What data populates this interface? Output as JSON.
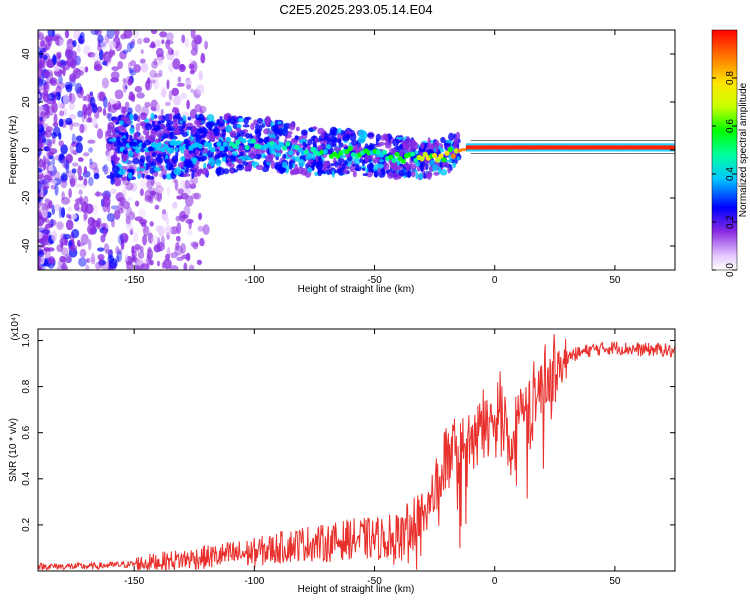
{
  "title": "C2E5.2025.293.05.14.E04",
  "chart_data": [
    {
      "type": "heatmap",
      "name": "spectrogram",
      "xlabel": "Height of straight line (km)",
      "ylabel": "Frequency (Hz)",
      "xlim": [
        -190,
        75
      ],
      "ylim": [
        -50,
        50
      ],
      "xticks": [
        -150,
        -100,
        -50,
        0,
        50
      ],
      "yticks": [
        -40,
        -20,
        0,
        20,
        40
      ],
      "xtick_labels": [
        "-150",
        "-100",
        "-50",
        "0",
        "50"
      ],
      "ytick_labels": [
        "-40",
        "-20",
        "0",
        "20",
        "40"
      ],
      "colorbar": {
        "label": "Normalized spectral amplitude",
        "range": [
          0,
          1
        ],
        "ticks": [
          0.0,
          0.2,
          0.4,
          0.6,
          0.8
        ],
        "tick_labels": [
          "0.0",
          "0.2",
          "0.4",
          "0.6",
          "0.8"
        ]
      },
      "ridge": {
        "x": [
          -190,
          -150,
          -120,
          -100,
          -80,
          -60,
          -50,
          -40,
          -30,
          -20,
          -10,
          0,
          20,
          50,
          75
        ],
        "freq": [
          0,
          1,
          2,
          3,
          0,
          -1,
          -2,
          -3,
          -4,
          -2,
          1,
          1,
          1,
          1,
          1
        ],
        "peak_amplitude": [
          0.2,
          0.3,
          0.35,
          0.4,
          0.45,
          0.55,
          0.5,
          0.55,
          0.6,
          0.75,
          0.9,
          0.95,
          0.95,
          0.95,
          0.95
        ]
      }
    },
    {
      "type": "line",
      "name": "snr",
      "xlabel": "Height of straight line (km)",
      "ylabel": "SNR (10 * v/v)",
      "scale_label": "(x10⁴)",
      "xlim": [
        -190,
        75
      ],
      "ylim": [
        0,
        1.05
      ],
      "xticks": [
        -150,
        -100,
        -50,
        0,
        50
      ],
      "yticks": [
        0.2,
        0.4,
        0.6,
        0.8,
        1.0
      ],
      "xtick_labels": [
        "-150",
        "-100",
        "-50",
        "0",
        "50"
      ],
      "ytick_labels": [
        "0.2",
        "0.4",
        "0.6",
        "0.8",
        "1.0"
      ],
      "color": "#e8302c",
      "x": [
        -190,
        -170,
        -150,
        -140,
        -120,
        -100,
        -90,
        -80,
        -70,
        -60,
        -50,
        -40,
        -35,
        -30,
        -25,
        -22,
        -20,
        -15,
        -10,
        -5,
        0,
        5,
        7,
        10,
        15,
        20,
        25,
        30,
        40,
        50,
        60,
        70,
        75
      ],
      "y": [
        0.02,
        0.02,
        0.03,
        0.04,
        0.06,
        0.08,
        0.1,
        0.12,
        0.12,
        0.14,
        0.14,
        0.15,
        0.18,
        0.25,
        0.33,
        0.4,
        0.5,
        0.52,
        0.55,
        0.62,
        0.66,
        0.7,
        0.5,
        0.72,
        0.7,
        0.82,
        0.86,
        0.93,
        0.96,
        0.97,
        0.96,
        0.96,
        0.95
      ]
    }
  ]
}
